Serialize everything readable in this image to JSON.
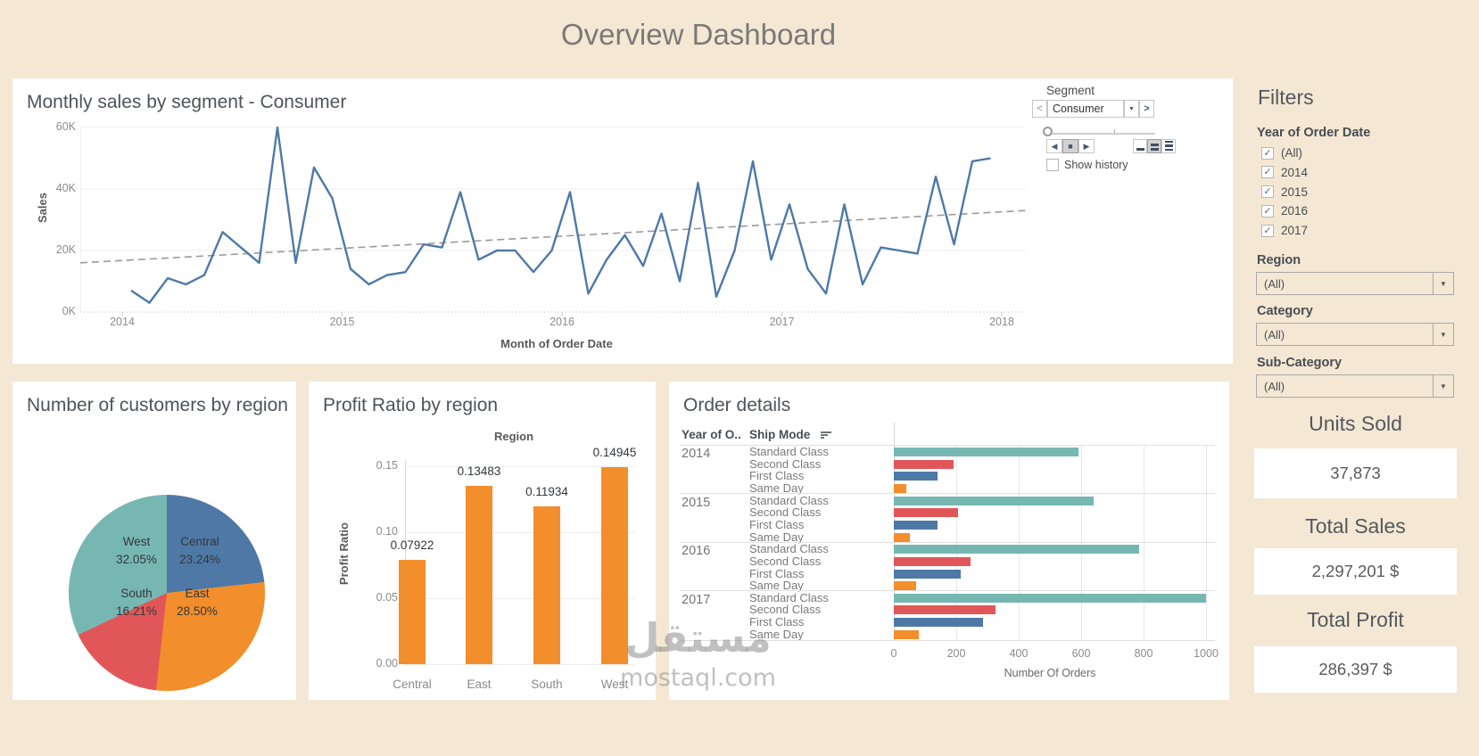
{
  "app": {
    "title": "Overview Dashboard"
  },
  "colors": {
    "background": "#f4e8d4",
    "panel": "#ffffff",
    "accent_blue": "#4e79a7",
    "orange": "#f28e2b",
    "red": "#e15759",
    "teal": "#76b7b2",
    "trend_gray": "#9a9a9a",
    "axis_text": "#8b8b8b"
  },
  "pages": {
    "title": "Segment",
    "value": "Consumer",
    "prev_icon": "<",
    "next_icon": ">",
    "dropdown_icon": "▼",
    "play_icons": [
      "◀",
      "■",
      "▶"
    ],
    "show_history": "Show history"
  },
  "sidebar": {
    "filters_title": "Filters",
    "year_filter": {
      "label": "Year of Order Date",
      "options": [
        {
          "label": "(All)",
          "checked": true
        },
        {
          "label": "2014",
          "checked": true
        },
        {
          "label": "2015",
          "checked": true
        },
        {
          "label": "2016",
          "checked": true
        },
        {
          "label": "2017",
          "checked": true
        }
      ]
    },
    "dropdowns": [
      {
        "label": "Region",
        "value": "(All)"
      },
      {
        "label": "Category",
        "value": "(All)"
      },
      {
        "label": "Sub-Category",
        "value": "(All)"
      }
    ],
    "kpis": [
      {
        "label": "Units Sold",
        "value": "37,873"
      },
      {
        "label": "Total Sales",
        "value": "2,297,201 $"
      },
      {
        "label": "Total Profit",
        "value": "286,397 $"
      }
    ]
  },
  "chart_data": [
    {
      "id": "monthly-sales",
      "type": "line",
      "title": "Monthly sales by segment - Consumer",
      "xlabel": "Month of Order Date",
      "ylabel": "Sales",
      "x_ticks": [
        "2014",
        "2015",
        "2016",
        "2017",
        "2018"
      ],
      "y_ticks": [
        "0K",
        "20K",
        "40K",
        "60K"
      ],
      "ylim": [
        0,
        62
      ],
      "unit": "K",
      "months_span": "Jan 2014 - Dec 2017",
      "series": [
        {
          "name": "Sales (K)",
          "values": [
            7,
            3,
            11,
            9,
            12,
            26,
            21,
            16,
            60,
            16,
            47,
            37,
            14,
            9,
            12,
            13,
            22,
            21,
            39,
            17,
            20,
            20,
            13,
            20,
            39,
            6,
            17,
            25,
            15,
            32,
            10,
            42,
            5,
            20,
            49,
            17,
            35,
            14,
            6,
            35,
            9,
            21,
            20,
            19,
            44,
            22,
            49,
            50
          ]
        }
      ],
      "trend": {
        "start": 16,
        "end": 33,
        "style": "dashed"
      },
      "line_color": "#4e79a7"
    },
    {
      "id": "customers-by-region",
      "type": "pie",
      "title": "Number of customers by region",
      "labels": [
        "Central",
        "East",
        "South",
        "West"
      ],
      "values": [
        23.24,
        28.5,
        16.21,
        32.05
      ],
      "unit": "%",
      "colors": [
        "#4e79a7",
        "#f28e2b",
        "#e15759",
        "#76b7b2"
      ],
      "start_angle_deg": 0,
      "direction": "clockwise"
    },
    {
      "id": "profit-ratio",
      "type": "bar",
      "title": "Profit Ratio by region",
      "header": "Region",
      "ylabel": "Profit Ratio",
      "categories": [
        "Central",
        "East",
        "South",
        "West"
      ],
      "values": [
        0.07922,
        0.13483,
        0.11934,
        0.14945
      ],
      "y_ticks": [
        0.0,
        0.05,
        0.1,
        0.15
      ],
      "ylim": [
        0,
        0.16
      ],
      "bar_color": "#f28e2b",
      "grid": true
    },
    {
      "id": "order-details",
      "type": "bar-horizontal-grouped",
      "title": "Order details",
      "col1": "Year of O..",
      "col2": "Ship Mode",
      "xlabel": "Number Of Orders",
      "x_ticks": [
        0,
        200,
        400,
        600,
        800,
        1000
      ],
      "xlim": [
        0,
        1000
      ],
      "ship_mode_colors": {
        "Standard Class": "#76b7b2",
        "Second Class": "#e15759",
        "First Class": "#4e79a7",
        "Same Day": "#f28e2b"
      },
      "groups": [
        {
          "year": "2014",
          "rows": [
            {
              "label": "Standard Class",
              "value": 590
            },
            {
              "label": "Second Class",
              "value": 190
            },
            {
              "label": "First Class",
              "value": 140
            },
            {
              "label": "Same Day",
              "value": 40
            }
          ]
        },
        {
          "year": "2015",
          "rows": [
            {
              "label": "Standard Class",
              "value": 640
            },
            {
              "label": "Second Class",
              "value": 205
            },
            {
              "label": "First Class",
              "value": 140
            },
            {
              "label": "Same Day",
              "value": 50
            }
          ]
        },
        {
          "year": "2016",
          "rows": [
            {
              "label": "Standard Class",
              "value": 785
            },
            {
              "label": "Second Class",
              "value": 245
            },
            {
              "label": "First Class",
              "value": 215
            },
            {
              "label": "Same Day",
              "value": 70
            }
          ]
        },
        {
          "year": "2017",
          "rows": [
            {
              "label": "Standard Class",
              "value": 1000
            },
            {
              "label": "Second Class",
              "value": 325
            },
            {
              "label": "First Class",
              "value": 285
            },
            {
              "label": "Same Day",
              "value": 80
            }
          ]
        }
      ]
    }
  ],
  "watermark": {
    "line1": "مستقل",
    "line2": "mostaql.com"
  }
}
